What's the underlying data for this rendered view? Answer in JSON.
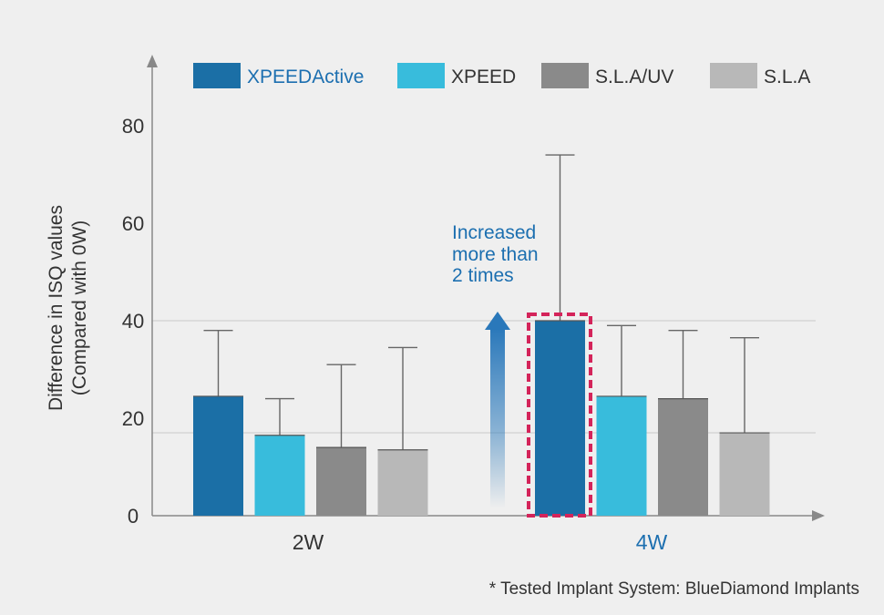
{
  "chart_data": {
    "type": "bar",
    "categories": [
      "2W",
      "4W"
    ],
    "series": [
      {
        "name": "XPEEDActive",
        "color": "#1b6fa6",
        "values": [
          24.5,
          40
        ],
        "err_upper": [
          38,
          74
        ]
      },
      {
        "name": "XPEED",
        "color": "#38bcdc",
        "values": [
          16.5,
          24.5
        ],
        "err_upper": [
          24,
          39
        ]
      },
      {
        "name": "S.L.A/UV",
        "color": "#8a8a8a",
        "values": [
          14,
          24
        ],
        "err_upper": [
          31,
          38
        ]
      },
      {
        "name": "S.L.A",
        "color": "#b8b8b8",
        "values": [
          13.5,
          17
        ],
        "err_upper": [
          34.5,
          36.5
        ]
      }
    ],
    "yticks": [
      "0",
      "20",
      "40",
      "60",
      "80"
    ],
    "ylim": [
      0,
      90
    ],
    "grid_lines_at": [
      17,
      40
    ],
    "ylabel": "Difference in ISQ values",
    "ylabel_sub": "(Compared with 0W)",
    "xlabel": "",
    "legend_position": "top",
    "category_label_colors": [
      "#333333",
      "#1c6fb0"
    ],
    "highlight": {
      "category": "4W",
      "series": "XPEEDActive",
      "box_color": "#d4245a"
    },
    "annotation": {
      "lines": [
        "Increased",
        "more than",
        "2 times"
      ],
      "color": "#1c6fb0"
    },
    "footnote": "* Tested Implant System: BlueDiamond Implants"
  }
}
